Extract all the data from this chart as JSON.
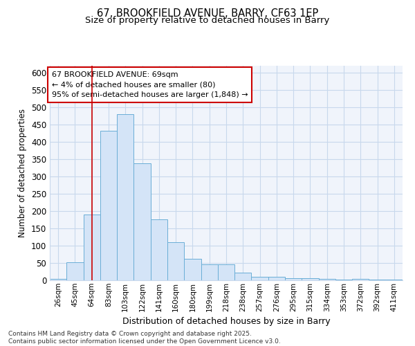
{
  "title1": "67, BROOKFIELD AVENUE, BARRY, CF63 1EP",
  "title2": "Size of property relative to detached houses in Barry",
  "xlabel": "Distribution of detached houses by size in Barry",
  "ylabel": "Number of detached properties",
  "categories": [
    "26sqm",
    "45sqm",
    "64sqm",
    "83sqm",
    "103sqm",
    "122sqm",
    "141sqm",
    "160sqm",
    "180sqm",
    "199sqm",
    "218sqm",
    "238sqm",
    "257sqm",
    "276sqm",
    "295sqm",
    "315sqm",
    "334sqm",
    "353sqm",
    "372sqm",
    "392sqm",
    "411sqm"
  ],
  "values": [
    5,
    52,
    191,
    432,
    480,
    338,
    177,
    110,
    62,
    47,
    46,
    22,
    10,
    11,
    7,
    6,
    4,
    2,
    5,
    3,
    3
  ],
  "bar_color": "#d4e4f7",
  "bar_edge_color": "#6aaed6",
  "grid_color": "#c8d8ec",
  "bg_color": "#f0f4fb",
  "vline_x_index": 2,
  "vline_color": "#cc0000",
  "annotation_title": "67 BROOKFIELD AVENUE: 69sqm",
  "annotation_line1": "← 4% of detached houses are smaller (80)",
  "annotation_line2": "95% of semi-detached houses are larger (1,848) →",
  "annotation_box_color": "#ffffff",
  "annotation_box_edge": "#cc0000",
  "footnote1": "Contains HM Land Registry data © Crown copyright and database right 2025.",
  "footnote2": "Contains public sector information licensed under the Open Government Licence v3.0.",
  "ylim": [
    0,
    620
  ],
  "yticks": [
    0,
    50,
    100,
    150,
    200,
    250,
    300,
    350,
    400,
    450,
    500,
    550,
    600
  ]
}
